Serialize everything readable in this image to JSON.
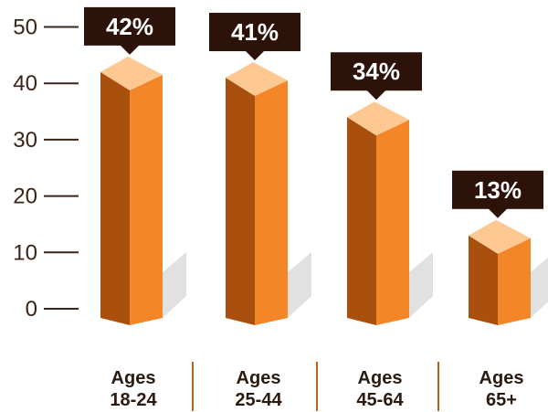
{
  "chart_data": {
    "type": "bar",
    "categories": [
      [
        "Ages",
        "18-24"
      ],
      [
        "Ages",
        "25-44"
      ],
      [
        "Ages",
        "45-64"
      ],
      [
        "Ages",
        "65+"
      ]
    ],
    "values": [
      42,
      41,
      34,
      13
    ],
    "data_labels": [
      "42%",
      "41%",
      "34%",
      "13%"
    ],
    "yticks": [
      "50",
      "40",
      "30",
      "20",
      "10",
      "0"
    ],
    "ylim": [
      0,
      50
    ],
    "grid": false,
    "legend": "none",
    "colors": {
      "front": "#f4862a",
      "side": "#a9500f",
      "top": "#fdc892",
      "label_box": "#2c1209",
      "axis": "#3a2418",
      "divider": "#b5651d",
      "shadow": "#dadada"
    }
  }
}
